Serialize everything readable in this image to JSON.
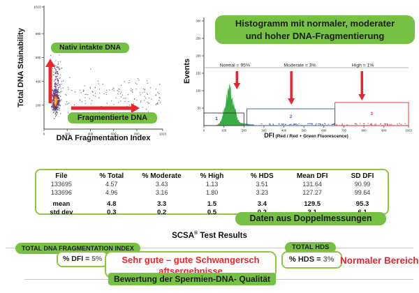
{
  "colors": {
    "green_fill": "#76c043",
    "green_border": "#8dc63f",
    "red": "#e8262d",
    "text_dark": "#1d1d1b",
    "histogram_green": "#2fa63c",
    "gate_blue": "#3953a4",
    "gate_black": "#3a3a3a",
    "gate_red": "#e8262d",
    "gray_line": "#c9c9c9"
  },
  "chart_data": [
    {
      "type": "scatter",
      "id": "dna-scatter",
      "xlabel": "DNA Fragmentation Index",
      "ylabel": "Total DNA Stainability",
      "xlim": [
        0,
        1023
      ],
      "ylim": [
        0,
        1023
      ],
      "xticks": [
        0,
        200,
        400,
        600,
        800,
        1023
      ],
      "yticks": [
        200,
        400,
        600,
        800,
        1023
      ],
      "annotations": [
        {
          "text": "Nativ intakte DNA",
          "arrow": "up"
        },
        {
          "text": "Fragmentierte DNA",
          "arrow": "right"
        }
      ],
      "clusters": [
        {
          "name": "native-intact-core",
          "cx": 100,
          "cy": 235,
          "sx": 16,
          "sy": 45,
          "n": 480,
          "palette": "heat"
        },
        {
          "name": "native-intact-upper-tail",
          "cx": 108,
          "cy": 420,
          "sx": 20,
          "sy": 100,
          "n": 110,
          "palette": "purple"
        },
        {
          "name": "fragmented-sparse",
          "x_min": 140,
          "x_max": 1010,
          "cy": 290,
          "sy": 70,
          "n": 150,
          "palette": "gray"
        }
      ]
    },
    {
      "type": "histogram",
      "id": "dfi-histogram",
      "title": "Histogramm mit normaler, moderater und hoher DNA-Fragmentierung",
      "xlabel_main": "DFI",
      "xlabel_sub": " (Red / Red + Green Fluorescence)",
      "ylabel": "Events",
      "xlim": [
        0,
        1023
      ],
      "ylim": [
        0,
        310
      ],
      "xticks": [
        0,
        100,
        200,
        300,
        400,
        500,
        600,
        700,
        800,
        900,
        1023
      ],
      "yticks": [
        50,
        100,
        150,
        200,
        250,
        300
      ],
      "gate_line_events": 166,
      "peak": {
        "center_dfi": 128,
        "sigma_dfi": 22,
        "height_events": 103,
        "tail": {
          "center_dfi": 200,
          "sigma_dfi": 35,
          "height_events": 5
        }
      },
      "regions": [
        {
          "label": "1",
          "from_dfi": 0,
          "to_dfi": 200,
          "top_events": 36,
          "color": "#3a3a3a"
        },
        {
          "label": "2",
          "from_dfi": 215,
          "to_dfi": 655,
          "top_events": 48,
          "color": "#3953a4"
        },
        {
          "label": "3",
          "from_dfi": 655,
          "to_dfi": 1023,
          "top_events": 66,
          "color": "#e8262d"
        }
      ],
      "annotations": [
        {
          "text": "Normal = 95%",
          "text_dfi": 155,
          "arrow_dfi": 165,
          "arrow_from_events": 156,
          "arrow_to_events": 104
        },
        {
          "text": "Moderate = 3%",
          "text_dfi": 480,
          "arrow_dfi": 437,
          "arrow_from_events": 156,
          "arrow_to_events": 60
        },
        {
          "text": "High = 1%",
          "text_dfi": 795,
          "arrow_dfi": 790,
          "arrow_from_events": 156,
          "arrow_to_events": 72
        }
      ]
    },
    {
      "type": "table",
      "id": "scsa-results-table",
      "headers": [
        "File",
        "% Total",
        "% Moderate",
        "% High",
        "% HDS",
        "Mean DFI",
        "SD DFI"
      ],
      "rows": [
        {
          "cells": [
            "133695",
            "4.57",
            "3.43",
            "1.13",
            "3.51",
            "131.64",
            "90.99"
          ],
          "bold": false,
          "gap": false
        },
        {
          "cells": [
            "133696",
            "4.96",
            "3.16",
            "1.80",
            "3.23",
            "127.27",
            "99.64"
          ],
          "bold": false,
          "gap": false
        },
        {
          "cells": [
            "mean",
            "4.8",
            "3.3",
            "1.5",
            "3.4",
            "129.5",
            "95.3"
          ],
          "bold": true,
          "gap": true
        },
        {
          "cells": [
            "std dev",
            "0.3",
            "0.2",
            "0.5",
            "0.2",
            "3.1",
            "6.1"
          ],
          "bold": true,
          "gap": false
        }
      ]
    }
  ],
  "results": {
    "doppelmessungen_label": "Daten aus Doppelmessungen",
    "heading_main": "SCSA",
    "heading_sup": "®",
    "heading_rest": " Test Results",
    "total_dfi_label": "TOTAL DNA FRAGMENTATION INDEX",
    "dfi_prefix": "% DFI = ",
    "dfi_value": "5%",
    "pregnancy_text": "Sehr gute – gute Schwangersch aftsergebnisse",
    "bewertung_label": "Bewertung der Spermien-DNA- Qualität",
    "total_hds_label": "TOTAL HDS",
    "hds_prefix": "% HDS = ",
    "hds_value": "3%",
    "normal_range_label": "Normaler Bereich"
  }
}
